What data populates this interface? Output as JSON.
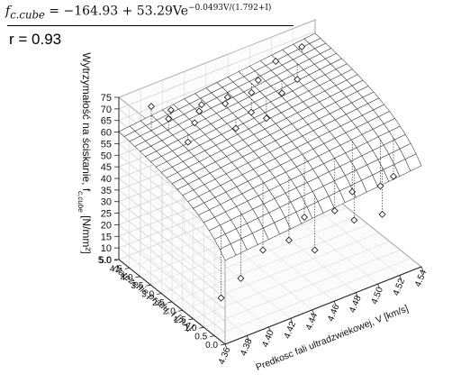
{
  "equation": {
    "lhs": "f",
    "lhs_sub": "c.cube",
    "rhs": " = −164.93 + 53.29Ve",
    "exponent": "−0.0493V/(1.792+I)"
  },
  "correlation": "r = 0.93",
  "chart_data": {
    "type": "surface3d",
    "title": "",
    "xlabel": "Predkosc fali ultradzwiekowej, V [km/s]",
    "ylabel": "Natezenie pradu, I [mA]",
    "zlabel_main": "Wytrzymałość na ściskanie, f",
    "zlabel_sub": "c,cube",
    "zlabel_unit": " [N/mm²]",
    "x_ticks": [
      "4.36",
      "4.38",
      "4.40",
      "4.42",
      "4.44",
      "4.46",
      "4.48",
      "4.50",
      "4.52",
      "4.54"
    ],
    "y_ticks": [
      "0.0",
      "0.5",
      "1.0",
      "1.5",
      "2.0",
      "2.5",
      "3.0",
      "3.5",
      "4.0",
      "4.5",
      "5.0"
    ],
    "z_ticks": [
      "5.0",
      "10",
      "15",
      "20",
      "25",
      "30",
      "35",
      "40",
      "45",
      "50",
      "55",
      "60",
      "65",
      "70",
      "75"
    ],
    "xlim": [
      4.36,
      4.54
    ],
    "ylim": [
      0,
      5
    ],
    "zlim": [
      5,
      75
    ],
    "model": {
      "a": -164.93,
      "b": 53.29,
      "c": 0.0493,
      "d": 1.792
    },
    "points": [
      {
        "x": 4.38,
        "y": 4.5,
        "z": 71
      },
      {
        "x": 4.39,
        "y": 4.2,
        "z": 66
      },
      {
        "x": 4.4,
        "y": 4.6,
        "z": 65
      },
      {
        "x": 4.41,
        "y": 4.0,
        "z": 62
      },
      {
        "x": 4.42,
        "y": 4.3,
        "z": 63
      },
      {
        "x": 4.43,
        "y": 4.7,
        "z": 61
      },
      {
        "x": 4.44,
        "y": 4.1,
        "z": 64
      },
      {
        "x": 4.45,
        "y": 4.5,
        "z": 62
      },
      {
        "x": 4.46,
        "y": 3.9,
        "z": 58
      },
      {
        "x": 4.47,
        "y": 4.4,
        "z": 61
      },
      {
        "x": 4.48,
        "y": 4.6,
        "z": 63
      },
      {
        "x": 4.49,
        "y": 4.0,
        "z": 60
      },
      {
        "x": 4.5,
        "y": 4.8,
        "z": 66
      },
      {
        "x": 4.51,
        "y": 4.3,
        "z": 60
      },
      {
        "x": 4.52,
        "y": 4.6,
        "z": 70
      },
      {
        "x": 4.4,
        "y": 3.8,
        "z": 57
      },
      {
        "x": 4.44,
        "y": 3.6,
        "z": 57
      },
      {
        "x": 4.47,
        "y": 3.7,
        "z": 55
      },
      {
        "x": 4.42,
        "y": 1.3,
        "z": 25
      },
      {
        "x": 4.44,
        "y": 1.1,
        "z": 27
      },
      {
        "x": 4.46,
        "y": 1.4,
        "z": 31
      },
      {
        "x": 4.48,
        "y": 1.0,
        "z": 33
      },
      {
        "x": 4.5,
        "y": 1.2,
        "z": 36
      },
      {
        "x": 4.52,
        "y": 0.9,
        "z": 37
      },
      {
        "x": 4.53,
        "y": 0.8,
        "z": 40
      },
      {
        "x": 4.39,
        "y": 0.8,
        "z": 22
      },
      {
        "x": 4.45,
        "y": 0.4,
        "z": 26
      },
      {
        "x": 4.49,
        "y": 0.6,
        "z": 30
      },
      {
        "x": 4.51,
        "y": 0.3,
        "z": 31
      },
      {
        "x": 4.37,
        "y": 0.7,
        "z": 18
      }
    ]
  }
}
